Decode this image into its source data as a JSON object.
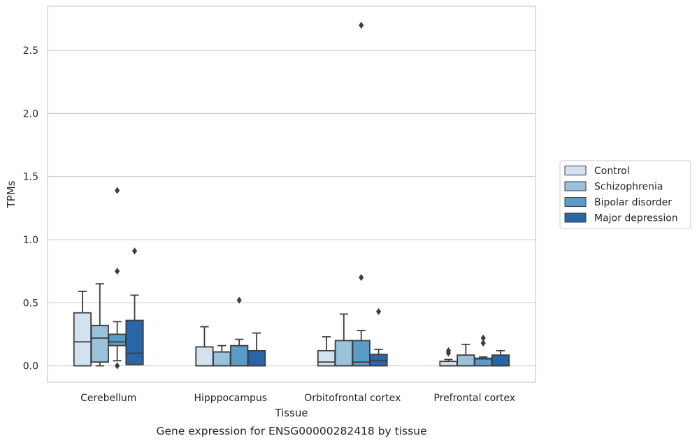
{
  "chart_data": {
    "type": "box",
    "xlabel": "Tissue",
    "ylabel": "TPMs",
    "caption": "Gene expression for ENSG00000282418 by tissue",
    "categories": [
      "Cerebellum",
      "Hipppocampus",
      "Orbitofrontal cortex",
      "Prefrontal cortex"
    ],
    "ylim": [
      -0.13,
      2.85
    ],
    "yticks": [
      0.0,
      0.5,
      1.0,
      1.5,
      2.0,
      2.5
    ],
    "ytick_labels": [
      "0.0",
      "0.5",
      "1.0",
      "1.5",
      "2.0",
      "2.5"
    ],
    "grid": true,
    "legend_position": "right",
    "series": [
      {
        "name": "Control",
        "color": "#d2e2f0",
        "boxes": [
          {
            "whislo": 0.0,
            "q1": 0.0,
            "med": 0.19,
            "q3": 0.42,
            "whishi": 0.59,
            "fliers": []
          },
          {
            "whislo": 0.0,
            "q1": 0.0,
            "med": 0.0,
            "q3": 0.15,
            "whishi": 0.31,
            "fliers": []
          },
          {
            "whislo": 0.0,
            "q1": 0.0,
            "med": 0.03,
            "q3": 0.12,
            "whishi": 0.23,
            "fliers": []
          },
          {
            "whislo": 0.0,
            "q1": 0.0,
            "med": 0.0,
            "q3": 0.035,
            "whishi": 0.05,
            "fliers": [
              0.1,
              0.12
            ]
          }
        ]
      },
      {
        "name": "Schizophrenia",
        "color": "#9ac2dc",
        "boxes": [
          {
            "whislo": 0.0,
            "q1": 0.03,
            "med": 0.22,
            "q3": 0.32,
            "whishi": 0.65,
            "fliers": []
          },
          {
            "whislo": 0.0,
            "q1": 0.0,
            "med": 0.0,
            "q3": 0.11,
            "whishi": 0.16,
            "fliers": []
          },
          {
            "whislo": 0.0,
            "q1": 0.0,
            "med": 0.0,
            "q3": 0.2,
            "whishi": 0.41,
            "fliers": []
          },
          {
            "whislo": 0.0,
            "q1": 0.0,
            "med": 0.0,
            "q3": 0.085,
            "whishi": 0.17,
            "fliers": []
          }
        ]
      },
      {
        "name": "Bipolar disorder",
        "color": "#5b9bc8",
        "boxes": [
          {
            "whislo": 0.04,
            "q1": 0.16,
            "med": 0.19,
            "q3": 0.25,
            "whishi": 0.35,
            "fliers": [
              0.0,
              0.75,
              1.39
            ]
          },
          {
            "whislo": 0.0,
            "q1": 0.0,
            "med": 0.0,
            "q3": 0.16,
            "whishi": 0.21,
            "fliers": [
              0.52
            ]
          },
          {
            "whislo": 0.0,
            "q1": 0.0,
            "med": 0.03,
            "q3": 0.2,
            "whishi": 0.28,
            "fliers": [
              0.7,
              2.7
            ]
          },
          {
            "whislo": 0.0,
            "q1": 0.0,
            "med": 0.055,
            "q3": 0.06,
            "whishi": 0.07,
            "fliers": [
              0.18,
              0.22
            ]
          }
        ]
      },
      {
        "name": "Major depression",
        "color": "#2966a8",
        "boxes": [
          {
            "whislo": 0.01,
            "q1": 0.01,
            "med": 0.1,
            "q3": 0.36,
            "whishi": 0.56,
            "fliers": [
              0.91
            ]
          },
          {
            "whislo": 0.0,
            "q1": 0.0,
            "med": 0.0,
            "q3": 0.12,
            "whishi": 0.26,
            "fliers": []
          },
          {
            "whislo": 0.0,
            "q1": 0.0,
            "med": 0.04,
            "q3": 0.09,
            "whishi": 0.13,
            "fliers": [
              0.43
            ]
          },
          {
            "whislo": 0.0,
            "q1": 0.0,
            "med": 0.0,
            "q3": 0.085,
            "whishi": 0.12,
            "fliers": []
          }
        ]
      }
    ]
  }
}
